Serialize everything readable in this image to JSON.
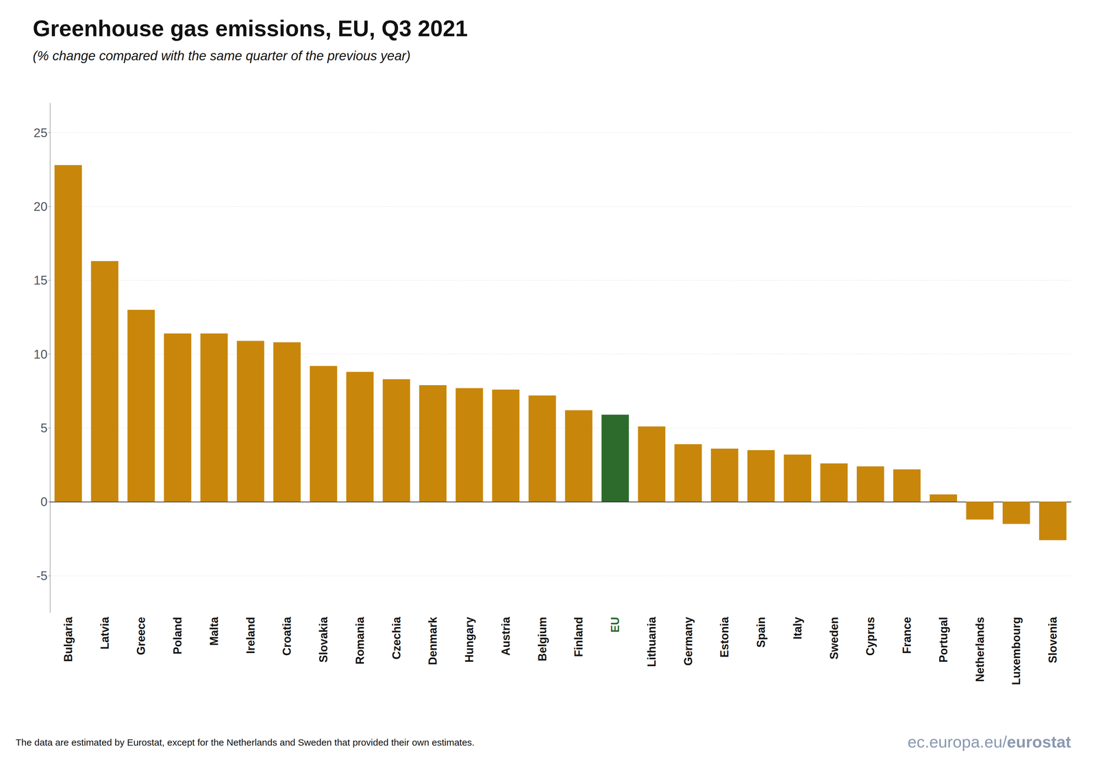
{
  "chart_data": {
    "type": "bar",
    "title": "Greenhouse gas emissions, EU, Q3 2021",
    "subtitle": "(% change compared with the same quarter of the previous year)",
    "annotations": [
      "The data are estimated by Eurostat, except for the Netherlands and Sweden that provided their own estimates.",
      "ec.europa.eu/",
      "eurostat"
    ],
    "categories": [
      "Bulgaria",
      "Latvia",
      "Greece",
      "Poland",
      "Malta",
      "Ireland",
      "Croatia",
      "Slovakia",
      "Romania",
      "Czechia",
      "Denmark",
      "Hungary",
      "Austria",
      "Belgium",
      "Finland",
      "EU",
      "Lithuania",
      "Germany",
      "Estonia",
      "Spain",
      "Italy",
      "Sweden",
      "Cyprus",
      "France",
      "Portugal",
      "Netherlands",
      "Luxembourg",
      "Slovenia"
    ],
    "values": [
      22.8,
      16.3,
      13.0,
      11.4,
      11.4,
      10.9,
      10.8,
      9.2,
      8.8,
      8.3,
      7.9,
      7.7,
      7.6,
      7.2,
      6.2,
      5.9,
      5.1,
      3.9,
      3.6,
      3.5,
      3.2,
      2.6,
      2.4,
      2.2,
      0.5,
      -1.2,
      -1.5,
      -2.6
    ],
    "colors": [
      "#c8870a",
      "#c8870a",
      "#c8870a",
      "#c8870a",
      "#c8870a",
      "#c8870a",
      "#c8870a",
      "#c8870a",
      "#c8870a",
      "#c8870a",
      "#c8870a",
      "#c8870a",
      "#c8870a",
      "#c8870a",
      "#c8870a",
      "#2d6b2d",
      "#c8870a",
      "#c8870a",
      "#c8870a",
      "#c8870a",
      "#c8870a",
      "#c8870a",
      "#c8870a",
      "#c8870a",
      "#c8870a",
      "#c8870a",
      "#c8870a",
      "#c8870a"
    ],
    "ylim": [
      -7.5,
      27
    ],
    "yticks": [
      -5,
      0,
      5,
      10,
      15,
      20,
      25
    ],
    "grid": true
  }
}
